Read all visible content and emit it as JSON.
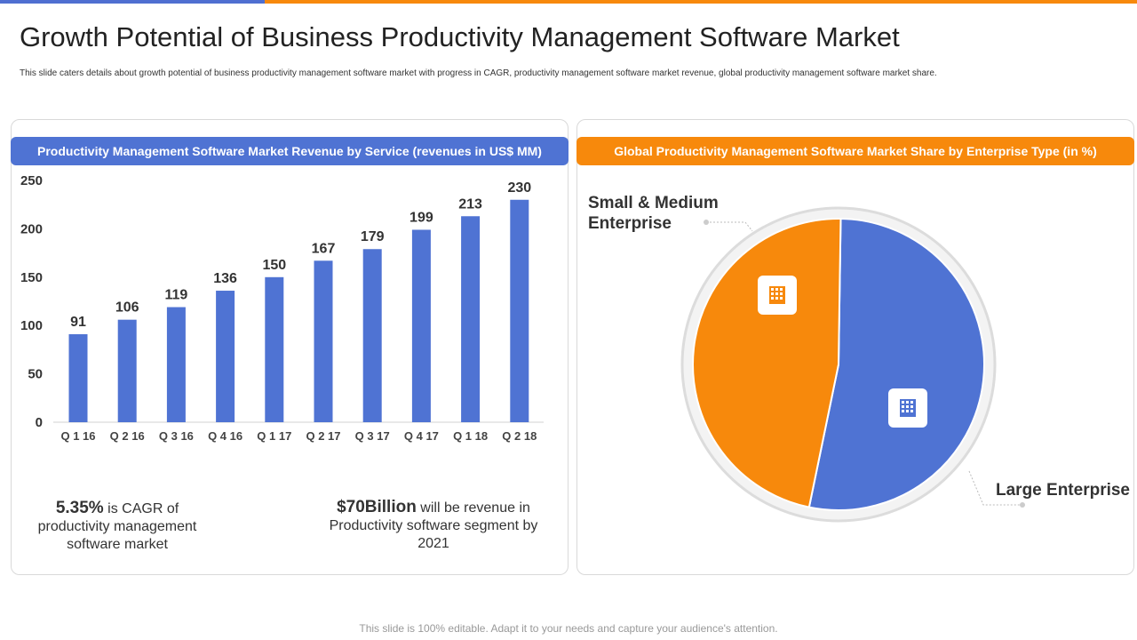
{
  "header": {
    "title": "Growth Potential of Business Productivity Management Software Market",
    "subtitle": "This slide caters details about growth potential of business productivity management software market with progress in CAGR, productivity management software market revenue, global productivity management software market share."
  },
  "left_panel": {
    "heading": "Productivity Management Software Market Revenue by Service (revenues in US$ MM)",
    "stat1_value": "5.35%",
    "stat1_text": " is CAGR of productivity management software market",
    "stat2_value": "$70Billion",
    "stat2_text": " will be revenue in Productivity software segment by 2021"
  },
  "right_panel": {
    "heading": "Global Productivity Management Software Market Share by Enterprise Type (in %)",
    "label_sme_line1": "Small & Medium",
    "label_sme_line2": "Enterprise",
    "label_large": "Large Enterprise"
  },
  "footer": {
    "text": "This slide is 100% editable. Adapt it to your needs and capture your audience's attention."
  },
  "colors": {
    "blue": "#4f73d3",
    "orange": "#f7890c"
  },
  "icons": {
    "sme_icon": "building-icon",
    "large_icon": "office-buildings-icon"
  },
  "chart_data": [
    {
      "type": "bar",
      "title": "Productivity Management Software Market Revenue by Service (revenues in US$ MM)",
      "categories": [
        "Q 1 16",
        "Q 2 16",
        "Q 3 16",
        "Q 4 16",
        "Q 1 17",
        "Q 2 17",
        "Q 3 17",
        "Q 4 17",
        "Q 1 18",
        "Q 2 18"
      ],
      "values": [
        91,
        106,
        119,
        136,
        150,
        167,
        179,
        199,
        213,
        230
      ],
      "yticks": [
        0,
        50,
        100,
        150,
        200,
        250
      ],
      "ylim": [
        0,
        250
      ],
      "grid": false,
      "color": "#4f73d3"
    },
    {
      "type": "pie",
      "title": "Global Productivity Management Software Market Share by Enterprise Type (in %)",
      "categories": [
        "Large Enterprise",
        "Small & Medium Enterprise"
      ],
      "values": [
        53,
        47
      ],
      "colors": [
        "#4f73d3",
        "#f7890c"
      ]
    }
  ]
}
